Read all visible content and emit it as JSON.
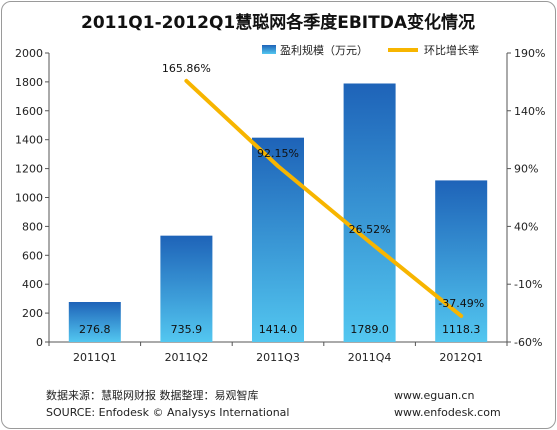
{
  "chart_data": {
    "type": "bar",
    "title": "2011Q1-2012Q1慧聪网各季度EBITDA变化情况",
    "categories": [
      "2011Q1",
      "2011Q2",
      "2011Q3",
      "2011Q4",
      "2012Q1"
    ],
    "series": [
      {
        "name": "盈利规模（万元）",
        "type": "bar",
        "axis": "left",
        "values": [
          276.8,
          735.9,
          1414.0,
          1789.0,
          1118.3
        ],
        "labels": [
          "276.8",
          "735.9",
          "1414.0",
          "1789.0",
          "1118.3"
        ]
      },
      {
        "name": "环比增长率",
        "type": "line",
        "axis": "right",
        "values": [
          null,
          165.86,
          92.15,
          26.52,
          -37.49
        ],
        "labels": [
          "",
          "165.86%",
          "92.15%",
          "26.52%",
          "-37.49%"
        ]
      }
    ],
    "y_left": {
      "min": 0,
      "max": 2000,
      "step": 200,
      "ticks": [
        "0",
        "200",
        "400",
        "600",
        "800",
        "1000",
        "1200",
        "1400",
        "1600",
        "1800",
        "2000"
      ]
    },
    "y_right": {
      "min": -60,
      "max": 190,
      "step": 50,
      "ticks": [
        "-60%",
        "-10%",
        "40%",
        "90%",
        "140%",
        "190%"
      ]
    },
    "legend_position": "top-right",
    "grid": false,
    "colors": {
      "bar_top": "#1e63b8",
      "bar_bottom": "#53c7f0",
      "line": "#f7b500"
    }
  },
  "footer": {
    "source_cn": "数据来源：慧聪网财报 数据整理：易观智库",
    "source_en": "SOURCE: Enfodesk © Analysys International",
    "url1": "www.eguan.cn",
    "url2": "www.enfodesk.com"
  }
}
